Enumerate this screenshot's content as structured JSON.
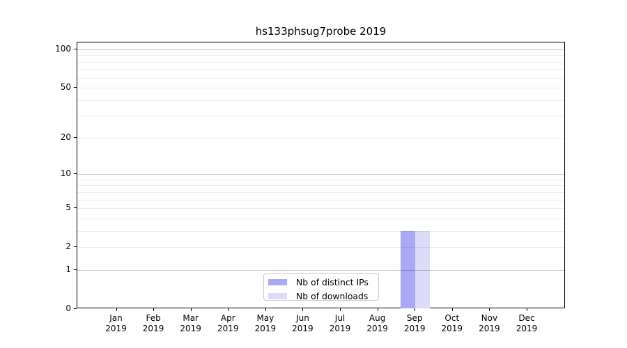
{
  "chart_data": {
    "type": "bar",
    "title": "hs133phsug7probe 2019",
    "categories": [
      "Jan 2019",
      "Feb 2019",
      "Mar 2019",
      "Apr 2019",
      "May 2019",
      "Jun 2019",
      "Jul 2019",
      "Aug 2019",
      "Sep 2019",
      "Oct 2019",
      "Nov 2019",
      "Dec 2019"
    ],
    "series": [
      {
        "name": "Nb of distinct IPs",
        "color": "#a9a9f5",
        "values": [
          0,
          0,
          0,
          0,
          0,
          0,
          0,
          0,
          3,
          0,
          0,
          0
        ]
      },
      {
        "name": "Nb of downloads",
        "color": "#dcdcf8",
        "values": [
          0,
          0,
          0,
          0,
          0,
          0,
          0,
          0,
          3,
          0,
          0,
          0
        ]
      }
    ],
    "xlabel": "",
    "ylabel": "",
    "y_scale": "log1p",
    "ylim": [
      0,
      113
    ],
    "y_ticks": [
      0,
      1,
      2,
      5,
      10,
      20,
      50,
      100
    ],
    "y_major_gridlines": [
      1,
      10,
      100
    ],
    "y_minor_gridlines": [
      2,
      3,
      4,
      5,
      6,
      7,
      8,
      9,
      20,
      30,
      40,
      50,
      60,
      70,
      80,
      90
    ],
    "grid": true,
    "legend_position": "bottom-center"
  },
  "colors": {
    "bar_distinct_ips": "#a9a9f5",
    "bar_downloads": "#dcdcf8",
    "major_grid": "#c9c9c9",
    "minor_grid": "#ededed",
    "axis": "#000000",
    "legend_border": "#c8c8c8",
    "background": "#ffffff",
    "text": "#000000"
  }
}
